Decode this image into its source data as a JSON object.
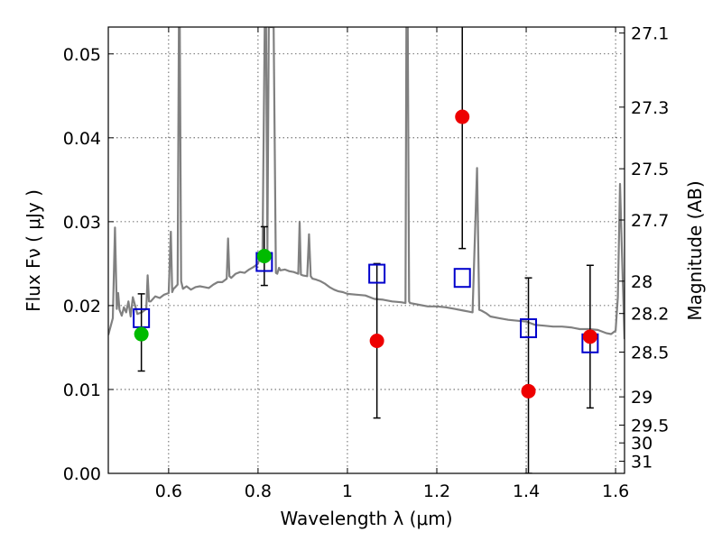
{
  "chart_data": {
    "type": "scatter",
    "title": "",
    "xlabel": "Wavelength  λ (μm)",
    "ylabel": "Flux  Fν  ( μJy )",
    "ylabel_right": "Magnitude (AB)",
    "xlim": [
      0.465,
      1.62
    ],
    "ylim": [
      0.0,
      0.0532
    ],
    "grid": true,
    "x_ticks": [
      0.6,
      0.8,
      1.0,
      1.2,
      1.4,
      1.6
    ],
    "x_tick_labels": [
      "0.6",
      "0.8",
      "1",
      "1.2",
      "1.4",
      "1.6"
    ],
    "y_ticks": [
      0.0,
      0.01,
      0.02,
      0.03,
      0.04,
      0.05
    ],
    "y_tick_labels": [
      "0.00",
      "0.01",
      "0.02",
      "0.03",
      "0.04",
      "0.05"
    ],
    "mag_ticks": [
      27.1,
      27.3,
      27.5,
      27.7,
      28,
      28.2,
      28.5,
      29,
      29.5,
      30,
      31
    ],
    "mag_tick_labels": [
      "27.1",
      "27.3",
      "27.5",
      "27.7",
      "28",
      "28.2",
      "28.5",
      "29",
      "29.5",
      "30",
      "31"
    ],
    "colors": {
      "spectrum": "#808080",
      "model_box": "#0000cc",
      "green": "#00bb00",
      "red": "#ee0000",
      "errorbar": "#000000"
    },
    "series": [
      {
        "name": "template-spectrum",
        "style": "line",
        "x": [
          0.465,
          0.47,
          0.475,
          0.48,
          0.484,
          0.487,
          0.49,
          0.495,
          0.5,
          0.505,
          0.51,
          0.515,
          0.52,
          0.53,
          0.54,
          0.55,
          0.553,
          0.556,
          0.56,
          0.57,
          0.58,
          0.59,
          0.6,
          0.605,
          0.608,
          0.611,
          0.615,
          0.62,
          0.623,
          0.625,
          0.628,
          0.632,
          0.64,
          0.65,
          0.66,
          0.67,
          0.68,
          0.69,
          0.7,
          0.71,
          0.72,
          0.73,
          0.733,
          0.736,
          0.74,
          0.75,
          0.76,
          0.77,
          0.78,
          0.79,
          0.8,
          0.805,
          0.81,
          0.815,
          0.818,
          0.821,
          0.824,
          0.83,
          0.835,
          0.84,
          0.843,
          0.847,
          0.85,
          0.86,
          0.87,
          0.88,
          0.89,
          0.893,
          0.896,
          0.9,
          0.91,
          0.914,
          0.918,
          0.922,
          0.93,
          0.94,
          0.95,
          0.96,
          0.97,
          0.98,
          0.99,
          1.0,
          1.02,
          1.04,
          1.06,
          1.08,
          1.1,
          1.12,
          1.13,
          1.132,
          1.135,
          1.138,
          1.14,
          1.16,
          1.18,
          1.2,
          1.22,
          1.24,
          1.26,
          1.27,
          1.28,
          1.29,
          1.295,
          1.3,
          1.31,
          1.32,
          1.34,
          1.36,
          1.38,
          1.4,
          1.42,
          1.44,
          1.46,
          1.48,
          1.5,
          1.52,
          1.54,
          1.56,
          1.58,
          1.59,
          1.6,
          1.605,
          1.61,
          1.615,
          1.62
        ],
        "values": [
          0.0165,
          0.0175,
          0.0185,
          0.0293,
          0.0196,
          0.0215,
          0.0195,
          0.0188,
          0.0198,
          0.0192,
          0.0205,
          0.0187,
          0.021,
          0.019,
          0.0192,
          0.0196,
          0.0236,
          0.0205,
          0.0205,
          0.0211,
          0.0209,
          0.0213,
          0.0215,
          0.0288,
          0.0216,
          0.022,
          0.0222,
          0.0225,
          0.0532,
          0.0532,
          0.0229,
          0.022,
          0.0223,
          0.0219,
          0.0222,
          0.0223,
          0.0222,
          0.0221,
          0.0225,
          0.0228,
          0.0228,
          0.0232,
          0.028,
          0.0235,
          0.0233,
          0.0238,
          0.024,
          0.0239,
          0.0243,
          0.0246,
          0.025,
          0.026,
          0.0265,
          0.0532,
          0.0532,
          0.0265,
          0.0532,
          0.0532,
          0.0532,
          0.0239,
          0.0238,
          0.0245,
          0.0242,
          0.0243,
          0.0241,
          0.024,
          0.0238,
          0.03,
          0.0237,
          0.0236,
          0.0235,
          0.0285,
          0.0235,
          0.0232,
          0.0231,
          0.0229,
          0.0226,
          0.0222,
          0.0219,
          0.0217,
          0.0216,
          0.0214,
          0.0213,
          0.0212,
          0.0208,
          0.0207,
          0.0205,
          0.0204,
          0.0203,
          0.0532,
          0.0532,
          0.0205,
          0.0203,
          0.0201,
          0.0199,
          0.0199,
          0.0198,
          0.0196,
          0.0194,
          0.0193,
          0.0192,
          0.0364,
          0.0195,
          0.0194,
          0.0191,
          0.0187,
          0.0185,
          0.0183,
          0.0182,
          0.0181,
          0.0177,
          0.0176,
          0.0175,
          0.0175,
          0.0174,
          0.0172,
          0.0172,
          0.0171,
          0.0167,
          0.0166,
          0.017,
          0.021,
          0.0345,
          0.025,
          0.016
        ]
      },
      {
        "name": "model-photometry",
        "style": "open-square",
        "x": [
          0.539,
          0.814,
          1.066,
          1.257,
          1.405,
          1.543
        ],
        "values": [
          0.0185,
          0.0252,
          0.0238,
          0.0233,
          0.0173,
          0.0155
        ]
      },
      {
        "name": "green-points",
        "style": "filled-circle",
        "x": [
          0.539,
          0.814
        ],
        "values": [
          0.0166,
          0.0259
        ],
        "errors_low": [
          0.0044,
          0.0035
        ],
        "errors_high": [
          0.0048,
          0.0035
        ]
      },
      {
        "name": "red-points",
        "style": "filled-circle",
        "x": [
          1.066,
          1.257,
          1.405,
          1.543
        ],
        "values": [
          0.0158,
          0.0425,
          0.0098,
          0.0163
        ],
        "errors_low": [
          0.0092,
          0.0157,
          0.0098,
          0.0085
        ],
        "errors_high": [
          0.0092,
          0.0115,
          0.0135,
          0.0085
        ]
      }
    ]
  }
}
